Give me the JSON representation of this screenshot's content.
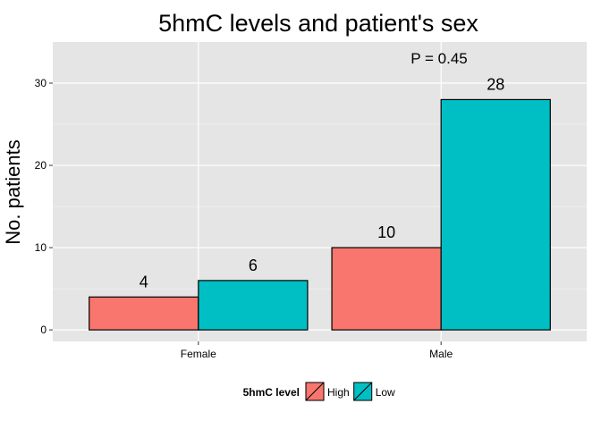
{
  "chart_data": {
    "type": "bar",
    "title": "5hmC levels and patient's sex",
    "xlabel": "",
    "ylabel": "No. patients",
    "categories": [
      "Female",
      "Male"
    ],
    "series": [
      {
        "name": "High",
        "values": [
          4,
          10
        ],
        "color": "#F8766D"
      },
      {
        "name": "Low",
        "values": [
          6,
          28
        ],
        "color": "#00BFC4"
      }
    ],
    "data_labels": [
      [
        "4",
        "10"
      ],
      [
        "6",
        "28"
      ]
    ],
    "yticks": [
      0,
      10,
      20,
      30
    ],
    "ylim": [
      -1.4,
      35
    ],
    "grid": true,
    "annotation": "P = 0.45",
    "legend": {
      "title": "5hmC level",
      "position": "bottom"
    }
  }
}
